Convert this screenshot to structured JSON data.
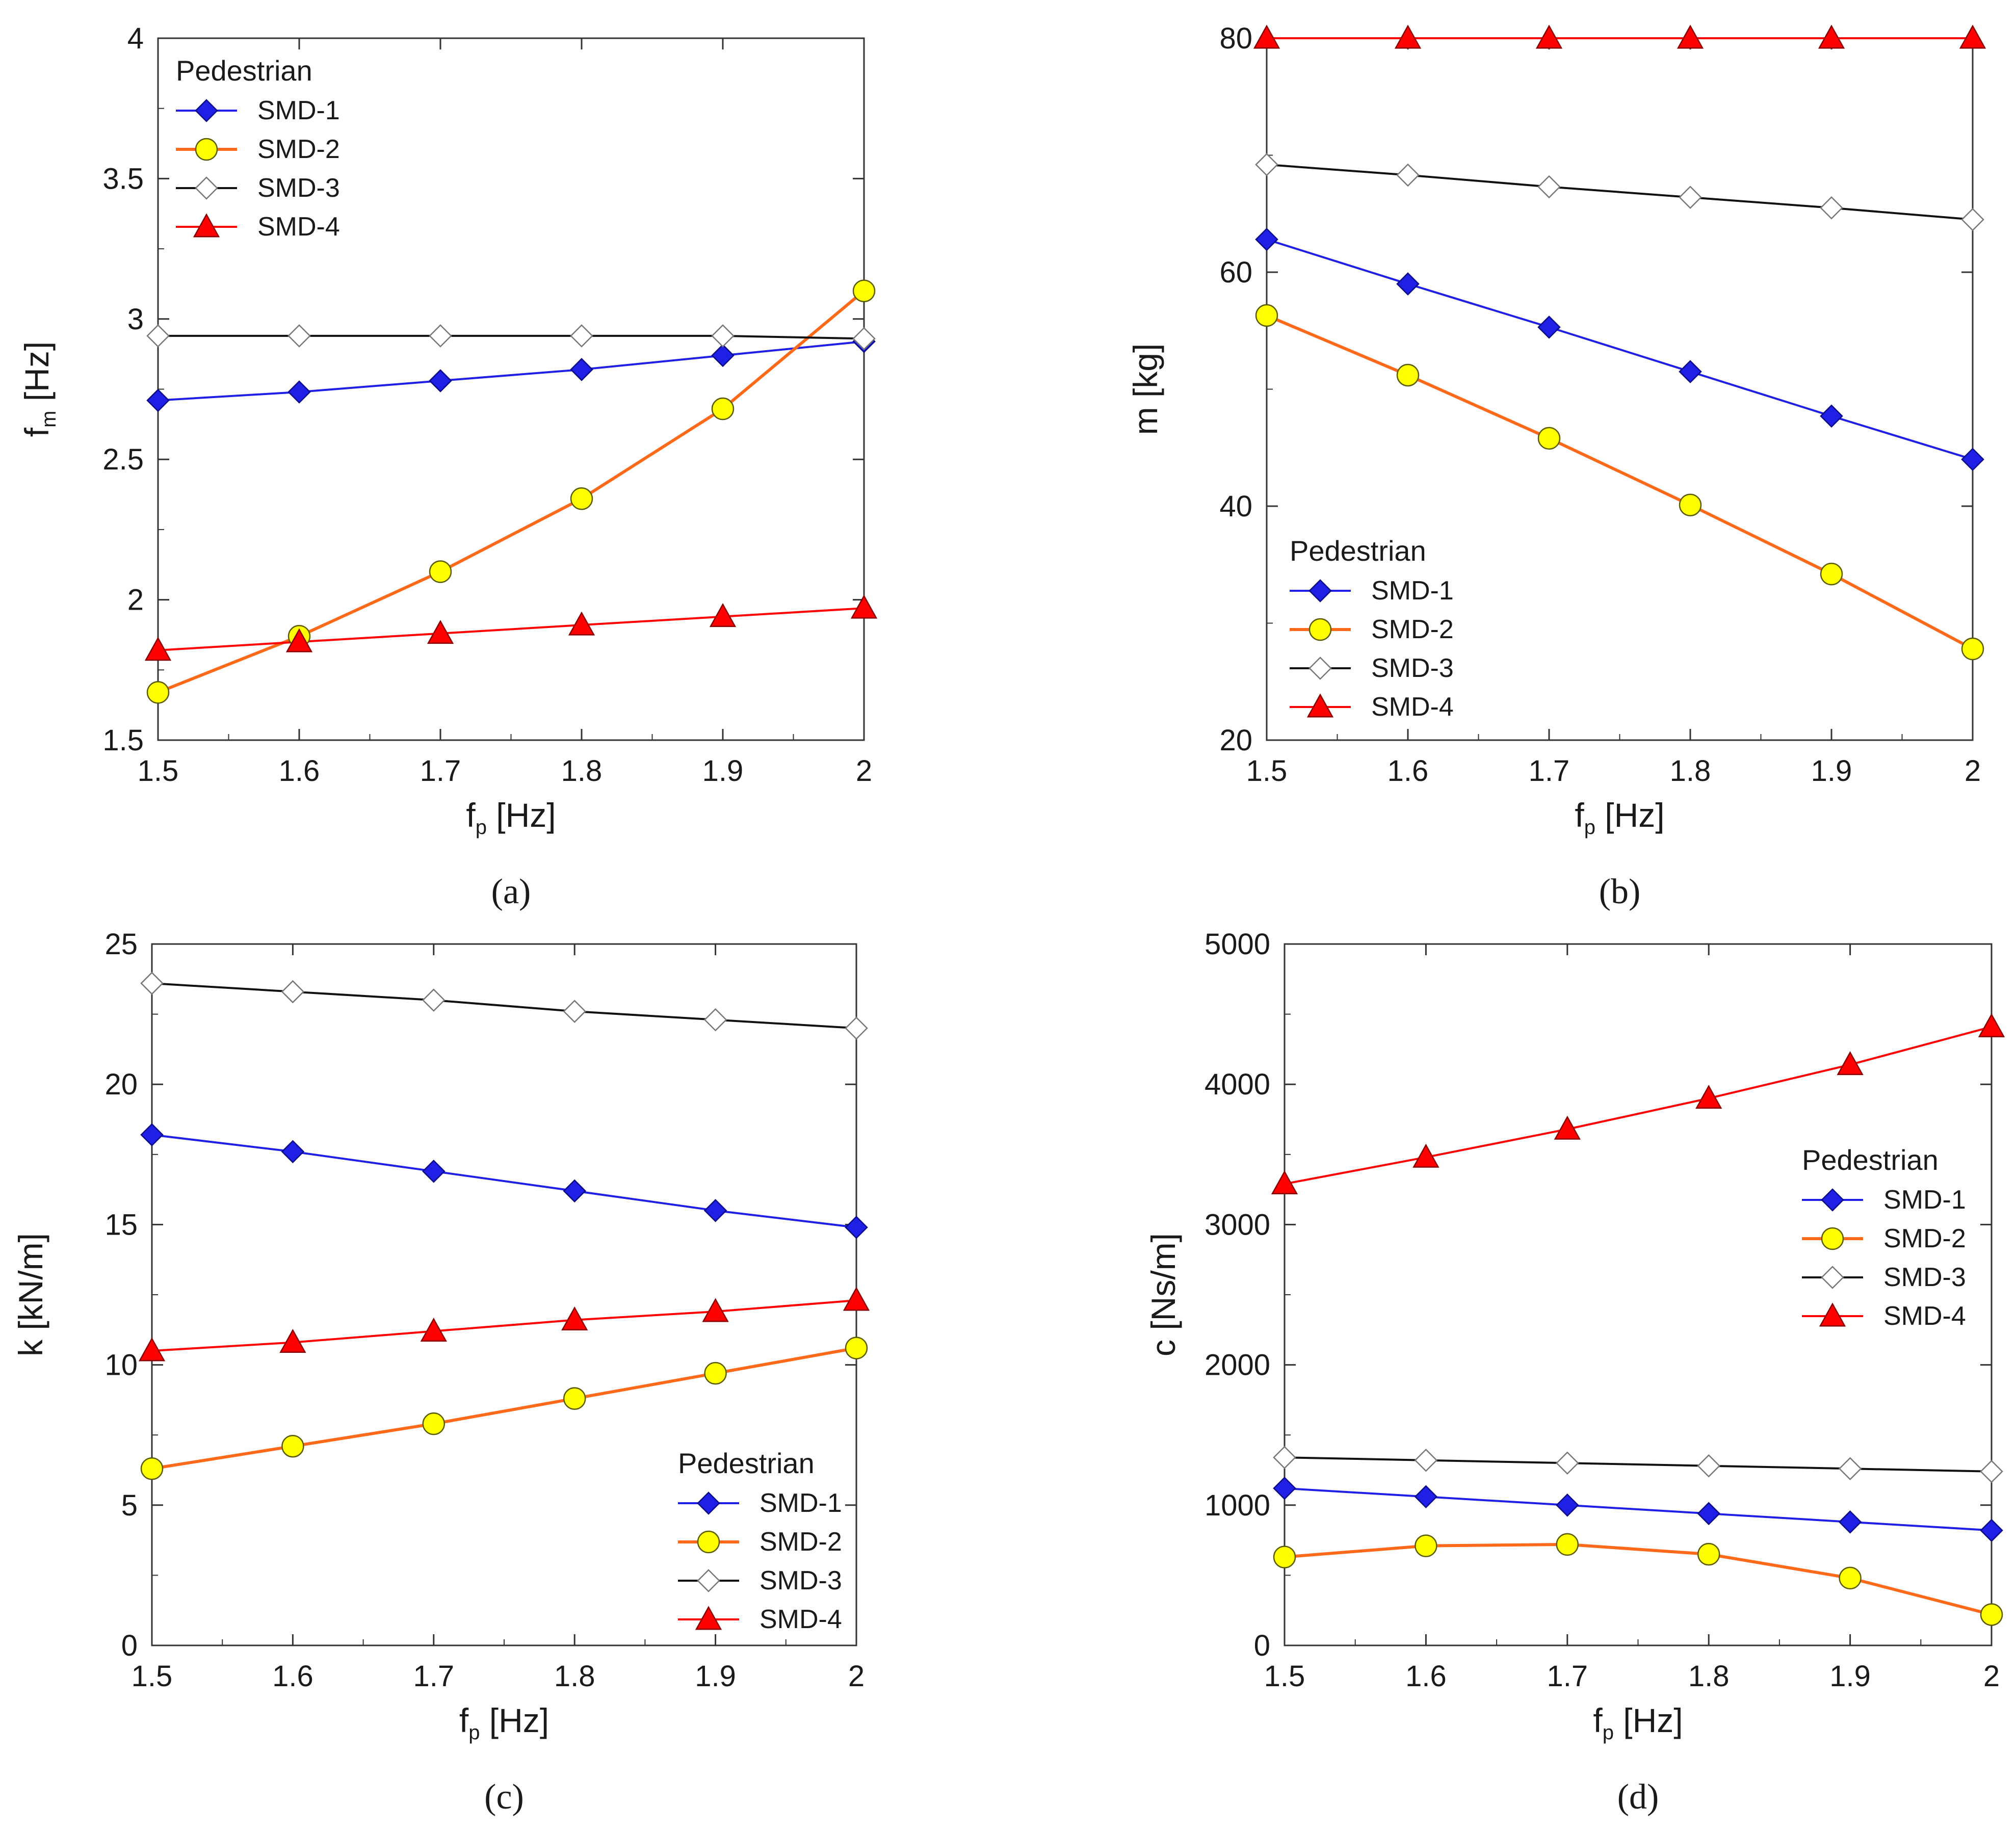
{
  "colors": {
    "SMD-1": {
      "line": "#1f1fe6",
      "marker": "#1f1fe6",
      "stroke": "#0b0b8a"
    },
    "SMD-2": {
      "line": "#ff6a1a",
      "marker": "#ffff00",
      "stroke": "#5a5a00"
    },
    "SMD-3": {
      "line": "#111111",
      "marker": "#ffffff",
      "stroke": "#777777"
    },
    "SMD-4": {
      "line": "#ff0000",
      "marker": "#ff0000",
      "stroke": "#8a0000"
    }
  },
  "chart_data": [
    {
      "panel": "(a)",
      "type": "line",
      "title": "",
      "xlabel": "f",
      "xlabel_sub": "p",
      "xlabel_unit": " [Hz]",
      "ylabel": "f",
      "ylabel_sub": "m",
      "ylabel_unit": " [Hz]",
      "xlim": [
        1.5,
        2.0
      ],
      "ylim": [
        1.5,
        4.0
      ],
      "xticks": [
        "1.5",
        "1.6",
        "1.7",
        "1.8",
        "1.9",
        "2"
      ],
      "yticks": [
        "1.5",
        "2",
        "2.5",
        "3",
        "3.5",
        "4"
      ],
      "legend_title": "Pedestrian",
      "legend_position": "top-left",
      "x": [
        1.5,
        1.6,
        1.7,
        1.8,
        1.9,
        2.0
      ],
      "series": [
        {
          "name": "SMD-1",
          "marker": "diamond",
          "values": [
            2.71,
            2.74,
            2.78,
            2.82,
            2.87,
            2.92
          ]
        },
        {
          "name": "SMD-2",
          "marker": "circle",
          "values": [
            1.67,
            1.87,
            2.1,
            2.36,
            2.68,
            3.1
          ]
        },
        {
          "name": "SMD-3",
          "marker": "diamond",
          "values": [
            2.94,
            2.94,
            2.94,
            2.94,
            2.94,
            2.93
          ]
        },
        {
          "name": "SMD-4",
          "marker": "triangle",
          "values": [
            1.82,
            1.85,
            1.88,
            1.91,
            1.94,
            1.97
          ]
        }
      ]
    },
    {
      "panel": "(b)",
      "type": "line",
      "title": "",
      "xlabel": "f",
      "xlabel_sub": "p",
      "xlabel_unit": " [Hz]",
      "ylabel": "m [kg]",
      "ylabel_sub": "",
      "ylabel_unit": "",
      "xlim": [
        1.5,
        2.0
      ],
      "ylim": [
        20,
        80
      ],
      "xticks": [
        "1.5",
        "1.6",
        "1.7",
        "1.8",
        "1.9",
        "2"
      ],
      "yticks": [
        "20",
        "40",
        "60",
        "80"
      ],
      "legend_title": "Pedestrian",
      "legend_position": "bottom-left",
      "x": [
        1.5,
        1.6,
        1.7,
        1.8,
        1.9,
        2.0
      ],
      "series": [
        {
          "name": "SMD-1",
          "marker": "diamond",
          "values": [
            62.8,
            59.0,
            55.3,
            51.5,
            47.7,
            44.0
          ]
        },
        {
          "name": "SMD-2",
          "marker": "circle",
          "values": [
            56.3,
            51.2,
            45.8,
            40.1,
            34.2,
            27.8
          ]
        },
        {
          "name": "SMD-3",
          "marker": "diamond",
          "values": [
            69.2,
            68.3,
            67.3,
            66.4,
            65.5,
            64.5
          ]
        },
        {
          "name": "SMD-4",
          "marker": "triangle",
          "values": [
            80,
            80,
            80,
            80,
            80,
            80
          ]
        }
      ]
    },
    {
      "panel": "(c)",
      "type": "line",
      "title": "",
      "xlabel": "f",
      "xlabel_sub": "p",
      "xlabel_unit": " [Hz]",
      "ylabel": "k [kN/m]",
      "ylabel_sub": "",
      "ylabel_unit": "",
      "xlim": [
        1.5,
        2.0
      ],
      "ylim": [
        0,
        25
      ],
      "xticks": [
        "1.5",
        "1.6",
        "1.7",
        "1.8",
        "1.9",
        "2"
      ],
      "yticks": [
        "0",
        "5",
        "10",
        "15",
        "20",
        "25"
      ],
      "legend_title": "Pedestrian",
      "legend_position": "bottom-right",
      "x": [
        1.5,
        1.6,
        1.7,
        1.8,
        1.9,
        2.0
      ],
      "series": [
        {
          "name": "SMD-1",
          "marker": "diamond",
          "values": [
            18.2,
            17.6,
            16.9,
            16.2,
            15.5,
            14.9
          ]
        },
        {
          "name": "SMD-2",
          "marker": "circle",
          "values": [
            6.3,
            7.1,
            7.9,
            8.8,
            9.7,
            10.6
          ]
        },
        {
          "name": "SMD-3",
          "marker": "diamond",
          "values": [
            23.6,
            23.3,
            23.0,
            22.6,
            22.3,
            22.0
          ]
        },
        {
          "name": "SMD-4",
          "marker": "triangle",
          "values": [
            10.5,
            10.8,
            11.2,
            11.6,
            11.9,
            12.3
          ]
        }
      ]
    },
    {
      "panel": "(d)",
      "type": "line",
      "title": "",
      "xlabel": "f",
      "xlabel_sub": "p",
      "xlabel_unit": " [Hz]",
      "ylabel": "c [Ns/m]",
      "ylabel_sub": "",
      "ylabel_unit": "",
      "xlim": [
        1.5,
        2.0
      ],
      "ylim": [
        0,
        5000
      ],
      "xticks": [
        "1.5",
        "1.6",
        "1.7",
        "1.8",
        "1.9",
        "2"
      ],
      "yticks": [
        "0",
        "1000",
        "2000",
        "3000",
        "4000",
        "5000"
      ],
      "legend_title": "Pedestrian",
      "legend_position": "right",
      "x": [
        1.5,
        1.6,
        1.7,
        1.8,
        1.9,
        2.0
      ],
      "series": [
        {
          "name": "SMD-1",
          "marker": "diamond",
          "values": [
            1120,
            1060,
            1000,
            940,
            880,
            820
          ]
        },
        {
          "name": "SMD-2",
          "marker": "circle",
          "values": [
            630,
            710,
            720,
            650,
            480,
            220
          ]
        },
        {
          "name": "SMD-3",
          "marker": "diamond",
          "values": [
            1340,
            1320,
            1300,
            1280,
            1260,
            1240
          ]
        },
        {
          "name": "SMD-4",
          "marker": "triangle",
          "values": [
            3290,
            3480,
            3680,
            3900,
            4140,
            4410
          ]
        }
      ]
    }
  ]
}
